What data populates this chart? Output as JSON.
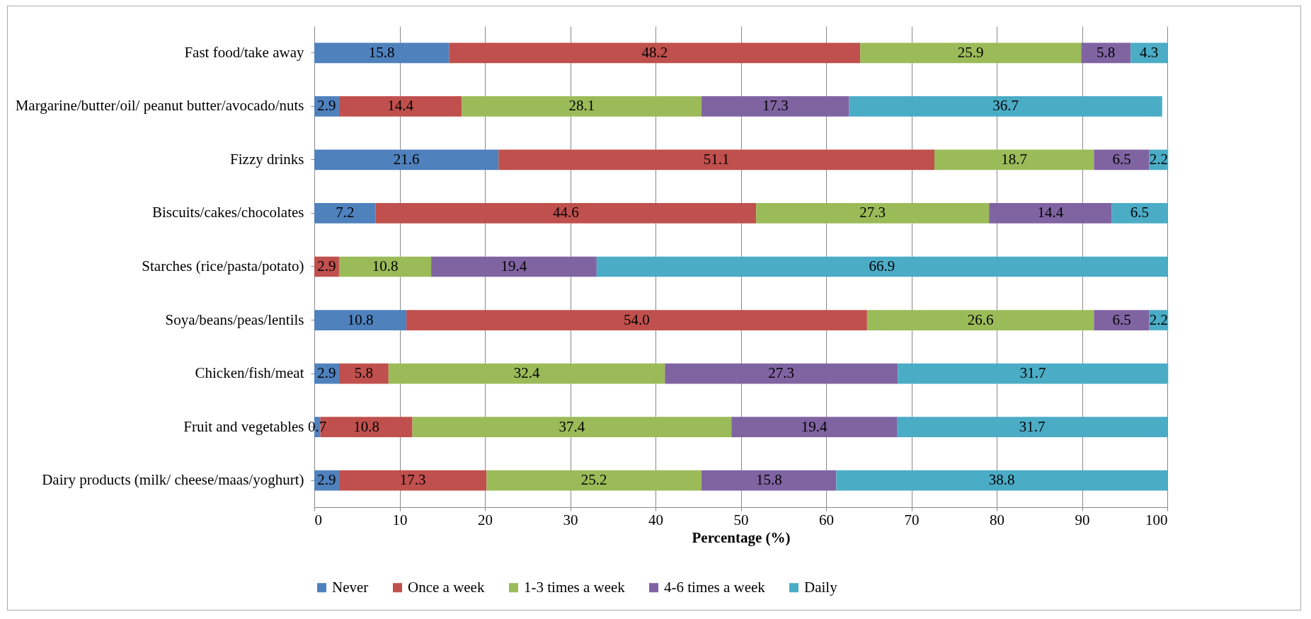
{
  "chart_data": {
    "type": "bar",
    "orientation": "horizontal",
    "stacked": true,
    "xlabel": "Percentage (%)",
    "categories": [
      "Fast food/take away",
      "Margarine/butter/oil/ peanut butter/avocado/nuts",
      "Fizzy drinks",
      "Biscuits/cakes/chocolates",
      "Starches (rice/pasta/potato)",
      "Soya/beans/peas/lentils",
      "Chicken/fish/meat",
      "Fruit and vegetables",
      "Dairy products (milk/ cheese/maas/yoghurt)"
    ],
    "series": [
      {
        "name": "Never",
        "color": "#4f81bd",
        "values": [
          15.8,
          2.9,
          21.6,
          7.2,
          null,
          10.8,
          2.9,
          0.7,
          2.9
        ],
        "value_labels": [
          "15.8",
          "2.9",
          "21.6",
          "7.2",
          null,
          "10.8",
          "2.9",
          "0.7",
          "2.9"
        ]
      },
      {
        "name": "Once a week",
        "color": "#c0504d",
        "values": [
          48.2,
          14.4,
          51.1,
          44.6,
          2.9,
          54.0,
          5.8,
          10.8,
          17.3
        ],
        "value_labels": [
          "48.2",
          "14.4",
          "51.1",
          "44.6",
          "2.9",
          "54.0",
          "5.8",
          "10.8",
          "17.3"
        ]
      },
      {
        "name": "1-3 times a week",
        "color": "#9bbb59",
        "values": [
          25.9,
          28.1,
          18.7,
          27.3,
          10.8,
          26.6,
          32.4,
          37.4,
          25.2
        ],
        "value_labels": [
          "25.9",
          "28.1",
          "18.7",
          "27.3",
          "10.8",
          "26.6",
          "32.4",
          "37.4",
          "25.2"
        ]
      },
      {
        "name": "4-6 times a week",
        "color": "#8064a2",
        "values": [
          5.8,
          17.3,
          6.5,
          14.4,
          19.4,
          6.5,
          27.3,
          19.4,
          15.8
        ],
        "value_labels": [
          "5.8",
          "17.3",
          "6.5",
          "14.4",
          "19.4",
          "6.5",
          "27.3",
          "19.4",
          "15.8"
        ]
      },
      {
        "name": "Daily",
        "color": "#4bacc6",
        "values": [
          4.3,
          36.7,
          2.2,
          6.5,
          66.9,
          2.2,
          31.7,
          31.7,
          38.8
        ],
        "value_labels": [
          "4.3",
          "36.7",
          "2.2",
          "6.5",
          "66.9",
          "2.2",
          "31.7",
          "31.7",
          "38.8"
        ]
      }
    ],
    "xlim": [
      0,
      100
    ],
    "xticks": [
      0,
      10,
      20,
      30,
      40,
      50,
      60,
      70,
      80,
      90,
      100
    ],
    "grid": "x",
    "legend": "bottom"
  }
}
